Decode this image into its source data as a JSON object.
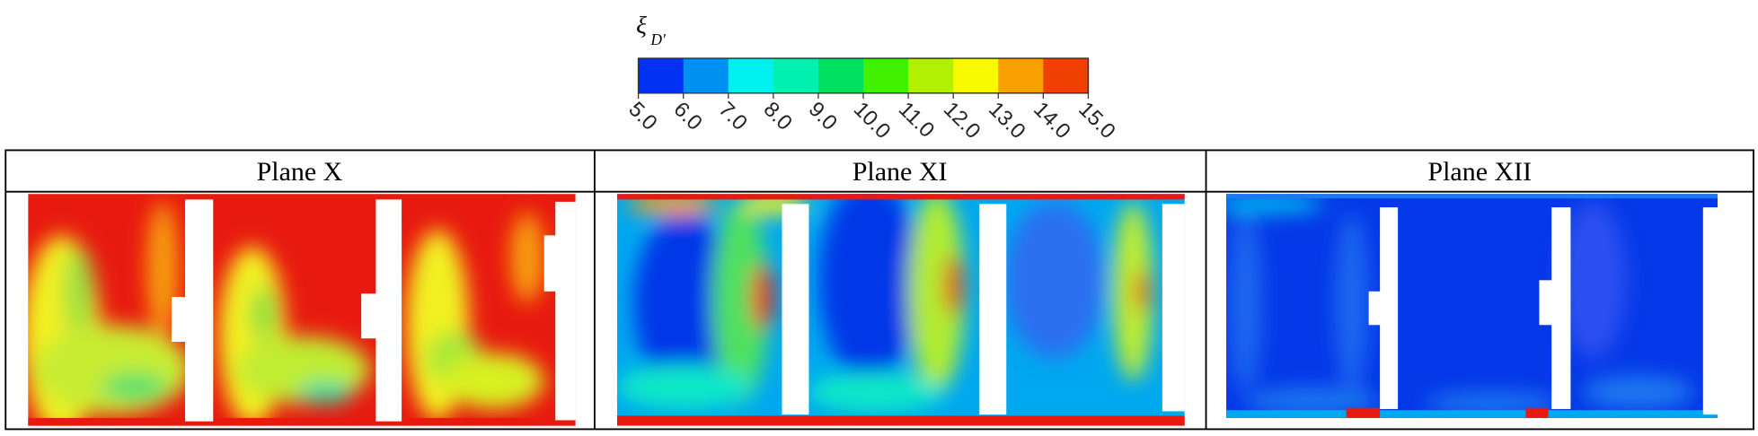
{
  "colorbar": {
    "symbol": "ξ",
    "subscript": "D'",
    "colors": [
      "#0030f0",
      "#0090f0",
      "#00f0f0",
      "#00f0b0",
      "#00e060",
      "#40f000",
      "#b0f000",
      "#f8f800",
      "#f8a000",
      "#f04000"
    ],
    "ticks": [
      {
        "value": 5,
        "label": "5.0"
      },
      {
        "value": 6,
        "label": "6.0"
      },
      {
        "value": 7,
        "label": "7.0"
      },
      {
        "value": 8,
        "label": "8.0"
      },
      {
        "value": 9,
        "label": "9.0"
      },
      {
        "value": 10,
        "label": "10.0"
      },
      {
        "value": 11,
        "label": "11.0"
      },
      {
        "value": 12,
        "label": "12.0"
      },
      {
        "value": 13,
        "label": "13.0"
      },
      {
        "value": 14,
        "label": "14.0"
      },
      {
        "value": 15,
        "label": "15.0"
      }
    ]
  },
  "panels": [
    {
      "title": "Plane X"
    },
    {
      "title": "Plane XI"
    },
    {
      "title": "Plane XII"
    }
  ]
}
